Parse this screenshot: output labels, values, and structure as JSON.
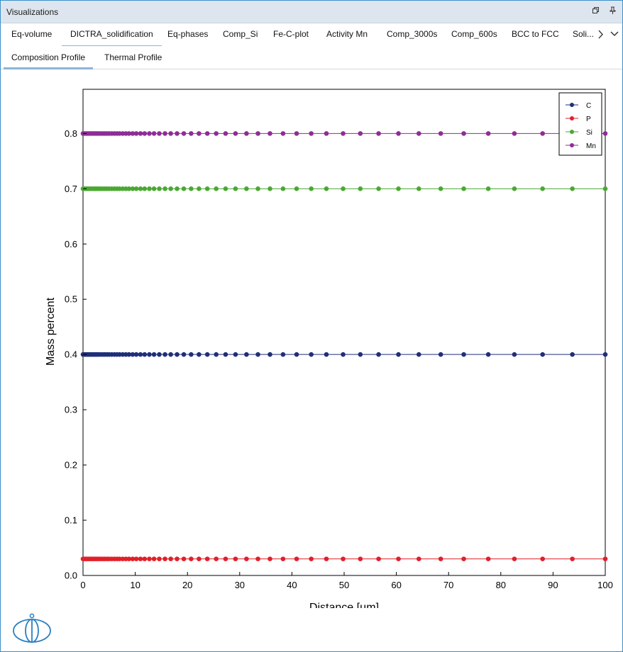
{
  "window": {
    "title": "Visualizations"
  },
  "tabs": [
    {
      "label": "Eq-volume"
    },
    {
      "label": "DICTRA_solidification"
    },
    {
      "label": "Eq-phases"
    },
    {
      "label": "Comp_Si"
    },
    {
      "label": "Fe-C-plot"
    },
    {
      "label": "Activity Mn"
    },
    {
      "label": "Comp_3000s"
    },
    {
      "label": "Comp_600s"
    },
    {
      "label": "BCC to FCC"
    },
    {
      "label": "Soli..."
    }
  ],
  "subtabs": [
    {
      "label": "Composition Profile"
    },
    {
      "label": "Thermal Profile"
    }
  ],
  "chart_data": {
    "type": "line",
    "xlabel": "Distance [µm]",
    "ylabel": "Mass percent",
    "xlim": [
      0,
      100
    ],
    "ylim": [
      0,
      0.88
    ],
    "xticks": [
      0,
      10,
      20,
      30,
      40,
      50,
      60,
      70,
      80,
      90,
      100
    ],
    "yticks": [
      0.0,
      0.1,
      0.2,
      0.3,
      0.4,
      0.5,
      0.6,
      0.7,
      0.8
    ],
    "ytick_labels": [
      "0.0",
      "0.1",
      "0.2",
      "0.3",
      "0.4",
      "0.5",
      "0.6",
      "0.7",
      "0.8"
    ],
    "grid": false,
    "legend_position": "top-right",
    "x": [
      0,
      0.3,
      0.6,
      0.9,
      1.2,
      1.5,
      1.8,
      2.1,
      2.4,
      2.7,
      3.0,
      3.4,
      3.8,
      4.2,
      4.6,
      5.0,
      5.5,
      6.0,
      6.5,
      7.0,
      7.6,
      8.2,
      8.8,
      9.5,
      10.2,
      11.0,
      11.8,
      12.7,
      13.6,
      14.6,
      15.7,
      16.8,
      18.0,
      19.3,
      20.7,
      22.2,
      23.8,
      25.5,
      27.3,
      29.2,
      31.3,
      33.5,
      35.8,
      38.3,
      40.9,
      43.7,
      46.6,
      49.8,
      53.1,
      56.6,
      60.4,
      64.3,
      68.5,
      72.9,
      77.6,
      82.6,
      88.0,
      93.7,
      100
    ],
    "series": [
      {
        "name": "C",
        "color": "#1f2f7a",
        "y_constant": 0.4
      },
      {
        "name": "P",
        "color": "#e0202a",
        "y_constant": 0.03
      },
      {
        "name": "Si",
        "color": "#4aa832",
        "y_constant": 0.7
      },
      {
        "name": "Mn",
        "color": "#8e2d96",
        "y_constant": 0.8
      }
    ]
  }
}
